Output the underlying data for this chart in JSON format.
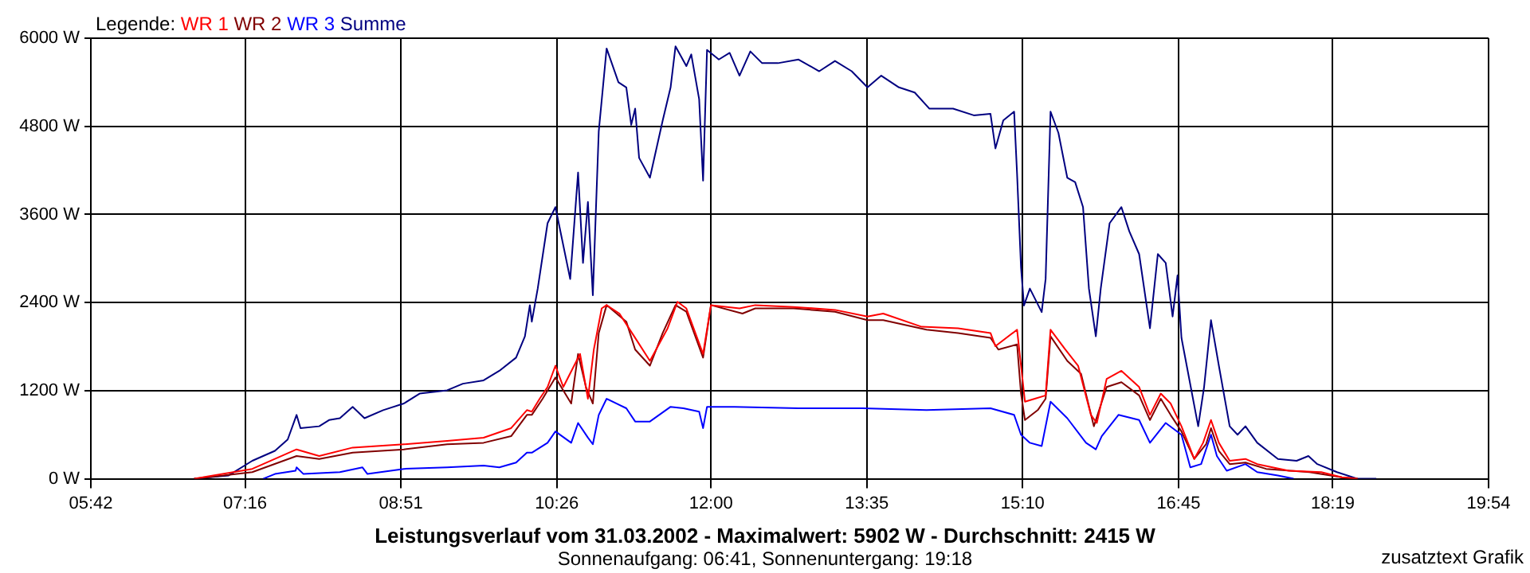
{
  "chart_data": {
    "type": "line",
    "title": "Leistungsverlauf vom 31.03.2002 - Maximalwert: 5902 W - Durchschnitt: 2415 W",
    "subtitle": "Sonnenaufgang: 06:41, Sonnenuntergang: 19:18",
    "legend_title": "Legende:",
    "annotations": [
      "zusatztext Grafik"
    ],
    "xlim": [
      5.7,
      19.9
    ],
    "xticks": [
      {
        "value": 5.7,
        "label": "05:42"
      },
      {
        "value": 7.2667,
        "label": "07:16"
      },
      {
        "value": 8.85,
        "label": "08:51"
      },
      {
        "value": 10.4333,
        "label": "10:26"
      },
      {
        "value": 12.0,
        "label": "12:00"
      },
      {
        "value": 13.5833,
        "label": "13:35"
      },
      {
        "value": 15.1667,
        "label": "15:10"
      },
      {
        "value": 16.75,
        "label": "16:45"
      },
      {
        "value": 18.3167,
        "label": "18:19"
      },
      {
        "value": 19.9,
        "label": "19:54"
      }
    ],
    "ylim": [
      0,
      6000
    ],
    "yticks": [
      {
        "value": 0,
        "label": "0 W"
      },
      {
        "value": 1200,
        "label": "1200 W"
      },
      {
        "value": 2400,
        "label": "2400 W"
      },
      {
        "value": 3600,
        "label": "3600 W"
      },
      {
        "value": 4800,
        "label": "4800 W"
      },
      {
        "value": 6000,
        "label": "6000 W"
      }
    ],
    "grid": true,
    "legend": "top left",
    "marker": "none",
    "line_style": "solid",
    "series": [
      {
        "name": "WR 1",
        "color": "#ff0000",
        "x": [
          6.75,
          7.34,
          7.79,
          8.02,
          8.36,
          8.88,
          9.32,
          9.69,
          9.97,
          10.13,
          10.18,
          10.26,
          10.34,
          10.42,
          10.5,
          10.67,
          10.75,
          10.81,
          10.89,
          10.94,
          11.07,
          11.22,
          11.38,
          11.56,
          11.66,
          11.75,
          11.92,
          12.0,
          12.29,
          12.45,
          12.84,
          13.26,
          13.59,
          13.75,
          14.14,
          14.51,
          14.84,
          14.89,
          15.11,
          15.15,
          15.19,
          15.29,
          15.4,
          15.45,
          15.6,
          15.73,
          15.86,
          15.92,
          16.02,
          16.17,
          16.35,
          16.46,
          16.57,
          16.67,
          16.78,
          16.91,
          17.0,
          17.08,
          17.16,
          17.27,
          17.43,
          17.55,
          17.87,
          18.2,
          18.41,
          18.57
        ],
        "values": [
          0,
          135,
          400,
          310,
          425,
          470,
          515,
          560,
          690,
          935,
          915,
          1090,
          1250,
          1540,
          1250,
          1700,
          1090,
          1760,
          2320,
          2365,
          2250,
          1940,
          1605,
          2050,
          2410,
          2320,
          1700,
          2365,
          2320,
          2365,
          2340,
          2300,
          2210,
          2250,
          2070,
          2050,
          1985,
          1805,
          2030,
          1540,
          1050,
          1090,
          1135,
          2030,
          1760,
          1540,
          870,
          760,
          1360,
          1470,
          1250,
          870,
          1160,
          1025,
          715,
          270,
          490,
          800,
          490,
          245,
          270,
          200,
          110,
          90,
          20,
          0
        ]
      },
      {
        "name": "WR 2",
        "color": "#800000",
        "x": [
          6.75,
          7.34,
          7.79,
          8.02,
          8.36,
          8.88,
          9.32,
          9.69,
          9.97,
          10.13,
          10.18,
          10.29,
          10.42,
          10.58,
          10.65,
          10.73,
          10.8,
          10.86,
          10.94,
          11.14,
          11.23,
          11.38,
          11.51,
          11.64,
          11.75,
          11.92,
          12.0,
          12.32,
          12.45,
          12.84,
          13.26,
          13.59,
          13.75,
          14.19,
          14.51,
          14.84,
          14.92,
          15.11,
          15.15,
          15.19,
          15.32,
          15.4,
          15.45,
          15.62,
          15.76,
          15.89,
          16.02,
          16.17,
          16.35,
          16.46,
          16.57,
          16.67,
          16.78,
          16.91,
          17.03,
          17.08,
          17.16,
          17.27,
          17.43,
          17.64,
          18.08,
          18.41,
          18.57
        ],
        "values": [
          0,
          90,
          310,
          270,
          355,
          400,
          470,
          490,
          580,
          870,
          870,
          1090,
          1380,
          1025,
          1700,
          1250,
          1025,
          1985,
          2365,
          2140,
          1760,
          1540,
          1985,
          2365,
          2275,
          1650,
          2365,
          2250,
          2320,
          2320,
          2275,
          2160,
          2160,
          2030,
          1985,
          1920,
          1760,
          1830,
          1160,
          800,
          935,
          1090,
          1940,
          1605,
          1430,
          715,
          1250,
          1315,
          1135,
          800,
          1090,
          870,
          645,
          270,
          470,
          690,
          380,
          200,
          220,
          135,
          90,
          20,
          0
        ]
      },
      {
        "name": "WR 3",
        "color": "#0000ff",
        "x": [
          7.45,
          7.57,
          7.78,
          7.79,
          7.86,
          8.23,
          8.46,
          8.51,
          8.88,
          9.32,
          9.69,
          9.85,
          10.02,
          10.13,
          10.18,
          10.34,
          10.42,
          10.58,
          10.65,
          10.75,
          10.8,
          10.86,
          10.94,
          11.14,
          11.23,
          11.38,
          11.59,
          11.72,
          11.88,
          11.92,
          11.96,
          12.24,
          12.89,
          13.54,
          14.19,
          14.84,
          15.08,
          15.15,
          15.24,
          15.36,
          15.45,
          15.62,
          15.81,
          15.91,
          15.97,
          16.14,
          16.35,
          16.46,
          16.62,
          16.78,
          16.87,
          16.98,
          17.08,
          17.14,
          17.24,
          17.43,
          17.55,
          17.76,
          17.92
        ],
        "values": [
          0,
          65,
          110,
          155,
          65,
          90,
          155,
          65,
          135,
          155,
          180,
          155,
          220,
          355,
          355,
          490,
          645,
          490,
          760,
          560,
          470,
          870,
          1090,
          960,
          780,
          780,
          980,
          960,
          915,
          690,
          980,
          980,
          960,
          960,
          935,
          960,
          870,
          600,
          490,
          445,
          1050,
          825,
          490,
          400,
          580,
          870,
          800,
          490,
          760,
          600,
          155,
          200,
          600,
          310,
          110,
          200,
          90,
          45,
          0
        ]
      },
      {
        "name": "Summe",
        "color": "#000080",
        "x": [
          6.75,
          7.1,
          7.34,
          7.57,
          7.7,
          7.79,
          7.83,
          8.02,
          8.12,
          8.23,
          8.36,
          8.48,
          8.67,
          8.88,
          9.04,
          9.32,
          9.48,
          9.69,
          9.85,
          10.02,
          10.11,
          10.16,
          10.18,
          10.24,
          10.34,
          10.42,
          10.57,
          10.65,
          10.7,
          10.75,
          10.8,
          10.86,
          10.94,
          11.06,
          11.14,
          11.19,
          11.23,
          11.27,
          11.38,
          11.51,
          11.59,
          11.64,
          11.75,
          11.8,
          11.88,
          11.92,
          11.96,
          12.08,
          12.19,
          12.29,
          12.4,
          12.52,
          12.68,
          12.89,
          13.1,
          13.26,
          13.43,
          13.59,
          13.73,
          13.91,
          14.07,
          14.22,
          14.46,
          14.67,
          14.84,
          14.89,
          14.97,
          15.08,
          15.11,
          15.15,
          15.18,
          15.24,
          15.36,
          15.4,
          15.45,
          15.53,
          15.62,
          15.7,
          15.78,
          15.84,
          15.91,
          15.96,
          16.05,
          16.17,
          16.25,
          16.35,
          16.46,
          16.54,
          16.62,
          16.69,
          16.74,
          16.78,
          16.95,
          17.01,
          17.08,
          17.16,
          17.27,
          17.35,
          17.43,
          17.55,
          17.76,
          17.95,
          18.07,
          18.16,
          18.36,
          18.57,
          18.76
        ],
        "values": [
          0,
          45,
          245,
          380,
          535,
          870,
          690,
          715,
          800,
          825,
          980,
          825,
          935,
          1025,
          1160,
          1205,
          1295,
          1340,
          1470,
          1650,
          1940,
          2365,
          2140,
          2590,
          3480,
          3700,
          2720,
          4170,
          2940,
          3770,
          2500,
          4730,
          5860,
          5400,
          5330,
          4820,
          5040,
          4370,
          4100,
          4880,
          5330,
          5890,
          5620,
          5780,
          5170,
          4060,
          5840,
          5710,
          5800,
          5490,
          5820,
          5660,
          5660,
          5710,
          5550,
          5690,
          5550,
          5330,
          5490,
          5330,
          5260,
          5040,
          5040,
          4950,
          4970,
          4500,
          4880,
          5000,
          4150,
          2880,
          2360,
          2590,
          2270,
          2720,
          5000,
          4710,
          4100,
          4040,
          3700,
          2590,
          1940,
          2590,
          3480,
          3700,
          3370,
          3060,
          2050,
          3060,
          2940,
          2210,
          2770,
          1920,
          715,
          1250,
          2160,
          1540,
          715,
          600,
          715,
          490,
          270,
          245,
          310,
          200,
          90,
          0,
          0
        ]
      }
    ]
  }
}
